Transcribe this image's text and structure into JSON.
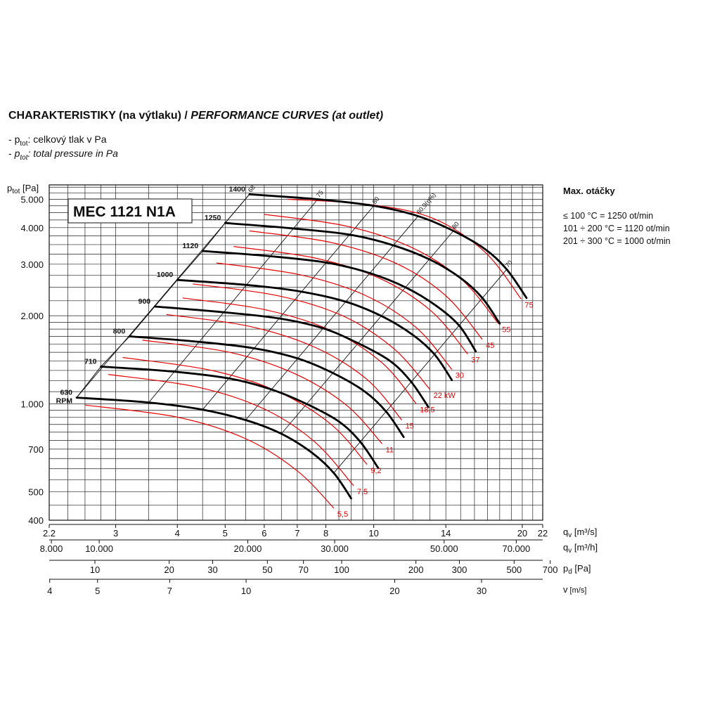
{
  "header": {
    "title_cz": "CHARAKTERISTIKY (na výtlaku) / ",
    "title_en": "PERFORMANCE CURVES (at outlet)",
    "legend_cz_sym": "p",
    "legend_cz_sub": "tot",
    "legend_cz_text": ": celkový tlak v Pa",
    "legend_en_sym": "p",
    "legend_en_sub": "tot",
    "legend_en_text": ": total pressure in Pa",
    "legend_prefix": "- "
  },
  "side_note": {
    "title": "Max. otáčky",
    "lines": [
      "≤ 100 °C = 1250 ot/min",
      "101 ÷ 200 °C = 1120 ot/min",
      "201 ÷ 300 °C = 1000 ot/min"
    ]
  },
  "chart_data": {
    "type": "line",
    "model_label": "MEC 1121 N1A",
    "x_scale": "log",
    "y_scale": "log",
    "xlim": [
      2.2,
      22
    ],
    "ylim": [
      400,
      5600
    ],
    "ylabel_sym": "p",
    "ylabel_sub": "tot",
    "ylabel_unit": " [Pa]",
    "y_ticks": [
      {
        "value": 400,
        "label": "400"
      },
      {
        "value": 500,
        "label": "500"
      },
      {
        "value": 700,
        "label": "700"
      },
      {
        "value": 1000,
        "label": "1.000"
      },
      {
        "value": 2000,
        "label": "2.000"
      },
      {
        "value": 3000,
        "label": "3.000"
      },
      {
        "value": 4000,
        "label": "4.000"
      },
      {
        "value": 5000,
        "label": "5.000"
      }
    ],
    "x_axes": [
      {
        "name": "qv_m3s",
        "label_sym": "q",
        "label_sub": "v",
        "label_unit": " [m³/s]",
        "ticks": [
          {
            "value": 2.2,
            "label": "2.2"
          },
          {
            "value": 3,
            "label": "3"
          },
          {
            "value": 4,
            "label": "4"
          },
          {
            "value": 5,
            "label": "5"
          },
          {
            "value": 6,
            "label": "6"
          },
          {
            "value": 7,
            "label": "7"
          },
          {
            "value": 8,
            "label": "8"
          },
          {
            "value": 10,
            "label": "10"
          },
          {
            "value": 14,
            "label": "14"
          },
          {
            "value": 20,
            "label": "20"
          },
          {
            "value": 22,
            "label": "22"
          }
        ]
      },
      {
        "name": "qv_m3h",
        "label_sym": "q",
        "label_sub": "v",
        "label_unit": " [m³/h]",
        "ticks": [
          {
            "value": 8000,
            "label": "8.000"
          },
          {
            "value": 10000,
            "label": "10.000"
          },
          {
            "value": 20000,
            "label": "20.000"
          },
          {
            "value": 30000,
            "label": "30.000"
          },
          {
            "value": 50000,
            "label": "50.000"
          },
          {
            "value": 70000,
            "label": "70.000"
          }
        ]
      },
      {
        "name": "pd_Pa",
        "label_sym": "p",
        "label_sub": "d",
        "label_unit": " [Pa]",
        "ticks": [
          {
            "value": 10,
            "label": "10"
          },
          {
            "value": 20,
            "label": "20"
          },
          {
            "value": 30,
            "label": "30"
          },
          {
            "value": 50,
            "label": "50"
          },
          {
            "value": 70,
            "label": "70"
          },
          {
            "value": 100,
            "label": "100"
          },
          {
            "value": 200,
            "label": "200"
          },
          {
            "value": 300,
            "label": "300"
          },
          {
            "value": 500,
            "label": "500"
          },
          {
            "value": 700,
            "label": "700"
          }
        ]
      },
      {
        "name": "v_ms",
        "label_sym": "v",
        "label_sub": "",
        "label_unit": " [m/s]",
        "ticks": [
          {
            "value": 4,
            "label": "4"
          },
          {
            "value": 5,
            "label": "5"
          },
          {
            "value": 7,
            "label": "7"
          },
          {
            "value": 10,
            "label": "10"
          },
          {
            "value": 20,
            "label": "20"
          },
          {
            "value": 30,
            "label": "30"
          }
        ]
      }
    ],
    "series": [
      {
        "name": "630",
        "unit_label": "RPM",
        "x": [
          2.5,
          3.5,
          4.5,
          5.5,
          6.5,
          7.5,
          8.3,
          9.0
        ],
        "y": [
          1050,
          1010,
          955,
          880,
          790,
          680,
          580,
          475
        ]
      },
      {
        "name": "710",
        "x": [
          2.8,
          3.9,
          5.1,
          6.2,
          7.3,
          8.5,
          9.4,
          10.2
        ],
        "y": [
          1340,
          1290,
          1220,
          1120,
          1000,
          870,
          740,
          605
        ]
      },
      {
        "name": "800",
        "x": [
          3.2,
          4.4,
          5.7,
          7.0,
          8.3,
          9.6,
          10.6,
          11.5
        ],
        "y": [
          1700,
          1630,
          1550,
          1430,
          1270,
          1100,
          940,
          770
        ]
      },
      {
        "name": "900",
        "x": [
          3.6,
          4.9,
          6.4,
          7.9,
          9.3,
          10.8,
          11.9,
          12.9
        ],
        "y": [
          2150,
          2060,
          1960,
          1810,
          1610,
          1400,
          1190,
          975
        ]
      },
      {
        "name": "1000",
        "x": [
          4.0,
          5.5,
          7.1,
          8.8,
          10.4,
          12.0,
          13.3,
          14.4
        ],
        "y": [
          2650,
          2550,
          2420,
          2230,
          1990,
          1720,
          1470,
          1205
        ]
      },
      {
        "name": "1120",
        "x": [
          4.5,
          6.1,
          8.0,
          9.8,
          11.6,
          13.4,
          14.9,
          16.1
        ],
        "y": [
          3330,
          3200,
          3040,
          2800,
          2500,
          2160,
          1850,
          1510
        ]
      },
      {
        "name": "1250",
        "x": [
          5.0,
          6.8,
          8.9,
          10.9,
          13.0,
          15.0,
          16.6,
          18.0
        ],
        "y": [
          4150,
          3980,
          3790,
          3490,
          3110,
          2690,
          2300,
          1880
        ]
      },
      {
        "name": "1400",
        "x": [
          5.6,
          7.7,
          10.0,
          12.3,
          14.5,
          16.8,
          18.6,
          20.4
        ],
        "y": [
          5200,
          5000,
          4750,
          4380,
          3900,
          3380,
          2880,
          2300
        ]
      }
    ],
    "power_curves": [
      {
        "label": "5,5",
        "x": [
          2.6,
          4.0,
          5.5,
          7.0,
          8.3
        ],
        "y": [
          990,
          900,
          760,
          590,
          440
        ]
      },
      {
        "label": "7,5",
        "x": [
          2.9,
          4.4,
          6.0,
          7.6,
          9.1
        ],
        "y": [
          1260,
          1140,
          960,
          740,
          525
        ]
      },
      {
        "label": "9,2",
        "x": [
          3.1,
          4.7,
          6.4,
          8.2,
          9.7
        ],
        "y": [
          1440,
          1300,
          1100,
          850,
          620
        ]
      },
      {
        "label": "11",
        "x": [
          3.4,
          5.1,
          6.9,
          8.8,
          10.4
        ],
        "y": [
          1650,
          1500,
          1270,
          990,
          730
        ]
      },
      {
        "label": "15",
        "x": [
          3.8,
          5.6,
          7.6,
          9.7,
          11.4
        ],
        "y": [
          2020,
          1840,
          1560,
          1210,
          880
        ]
      },
      {
        "label": "18,5",
        "x": [
          4.1,
          6.0,
          8.2,
          10.4,
          12.2
        ],
        "y": [
          2300,
          2100,
          1780,
          1380,
          1000
        ]
      },
      {
        "label": "22 kW",
        "x": [
          4.3,
          6.4,
          8.7,
          11.0,
          13.0
        ],
        "y": [
          2570,
          2340,
          1990,
          1540,
          1120
        ]
      },
      {
        "label": "30",
        "x": [
          4.8,
          7.1,
          9.6,
          12.2,
          14.4
        ],
        "y": [
          3030,
          2760,
          2350,
          1820,
          1310
        ]
      },
      {
        "label": "37",
        "x": [
          5.2,
          7.6,
          10.3,
          13.1,
          15.5
        ],
        "y": [
          3450,
          3150,
          2680,
          2070,
          1480
        ]
      },
      {
        "label": "45",
        "x": [
          5.6,
          8.2,
          11.1,
          14.0,
          16.6
        ],
        "y": [
          3900,
          3560,
          3020,
          2340,
          1660
        ]
      },
      {
        "label": "55",
        "x": [
          6.0,
          8.8,
          11.9,
          15.1,
          17.9
        ],
        "y": [
          4440,
          4050,
          3430,
          2650,
          1880
        ]
      },
      {
        "label": "75",
        "x": [
          6.7,
          9.8,
          13.2,
          16.8,
          19.9
        ],
        "y": [
          5000,
          4800,
          4300,
          3300,
          2280
        ]
      }
    ],
    "efficiency_lines": [
      {
        "label": "68",
        "x1": 2.5,
        "y1": 1050,
        "x2": 5.6,
        "y2": 5200
      },
      {
        "label": "75",
        "x1": 3.5,
        "y1": 1010,
        "x2": 7.7,
        "y2": 5000
      },
      {
        "label": "80",
        "x1": 4.5,
        "y1": 955,
        "x2": 10.0,
        "y2": 4750
      },
      {
        "label": "80,9(η%)",
        "x1": 5.5,
        "y1": 880,
        "x2": 12.3,
        "y2": 4380
      },
      {
        "label": "80",
        "x1": 6.5,
        "y1": 790,
        "x2": 14.5,
        "y2": 3900
      },
      {
        "label": "70",
        "x1": 8.3,
        "y1": 580,
        "x2": 18.6,
        "y2": 2880
      }
    ]
  }
}
